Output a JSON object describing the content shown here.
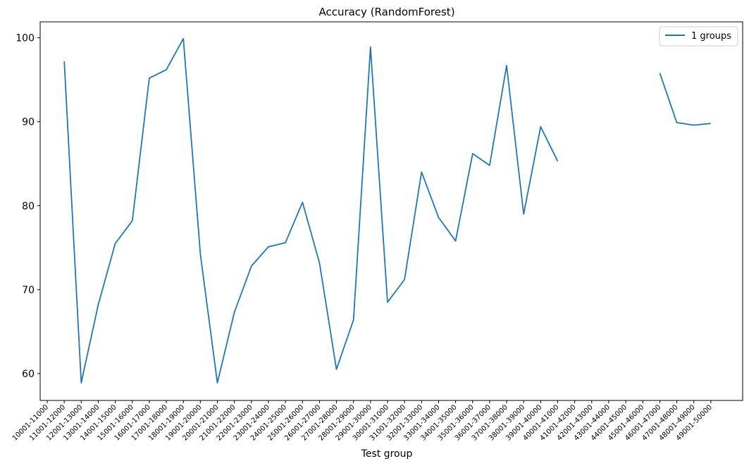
{
  "chart_data": {
    "type": "line",
    "title": "Accuracy (RandomForest)",
    "xlabel": "Test group",
    "ylabel": "",
    "ylim": [
      56.8,
      101.9
    ],
    "yticks": [
      60,
      70,
      80,
      90,
      100
    ],
    "grid": false,
    "legend_position": "top-right",
    "categories": [
      "10001-11000",
      "11001-12000",
      "12001-13000",
      "13001-14000",
      "14001-15000",
      "15001-16000",
      "16001-17000",
      "17001-18000",
      "18001-19000",
      "19001-20000",
      "20001-21000",
      "21001-22000",
      "22001-23000",
      "23001-24000",
      "24001-25000",
      "25001-26000",
      "26001-27000",
      "27001-28000",
      "28001-29000",
      "29001-30000",
      "30001-31000",
      "31001-32000",
      "32001-33000",
      "33001-34000",
      "34001-35000",
      "35001-36000",
      "36001-37000",
      "37001-38000",
      "38001-39000",
      "39001-40000",
      "40001-41000",
      "41001-42000",
      "42001-43000",
      "43001-44000",
      "44001-45000",
      "45001-46000",
      "46001-47000",
      "47001-48000",
      "48001-49000",
      "49001-50000"
    ],
    "series": [
      {
        "name": "1 groups",
        "color": "#1f77b4",
        "values": [
          null,
          97.2,
          58.9,
          68.2,
          75.5,
          78.2,
          95.2,
          96.2,
          99.9,
          74.2,
          58.9,
          67.3,
          72.8,
          75.1,
          75.6,
          80.4,
          73.2,
          60.5,
          66.4,
          98.9,
          68.5,
          71.2,
          84.0,
          78.6,
          75.8,
          86.2,
          84.8,
          96.7,
          79.0,
          89.4,
          85.3,
          null,
          null,
          null,
          null,
          null,
          95.8,
          89.9,
          89.6,
          89.8
        ]
      }
    ]
  }
}
